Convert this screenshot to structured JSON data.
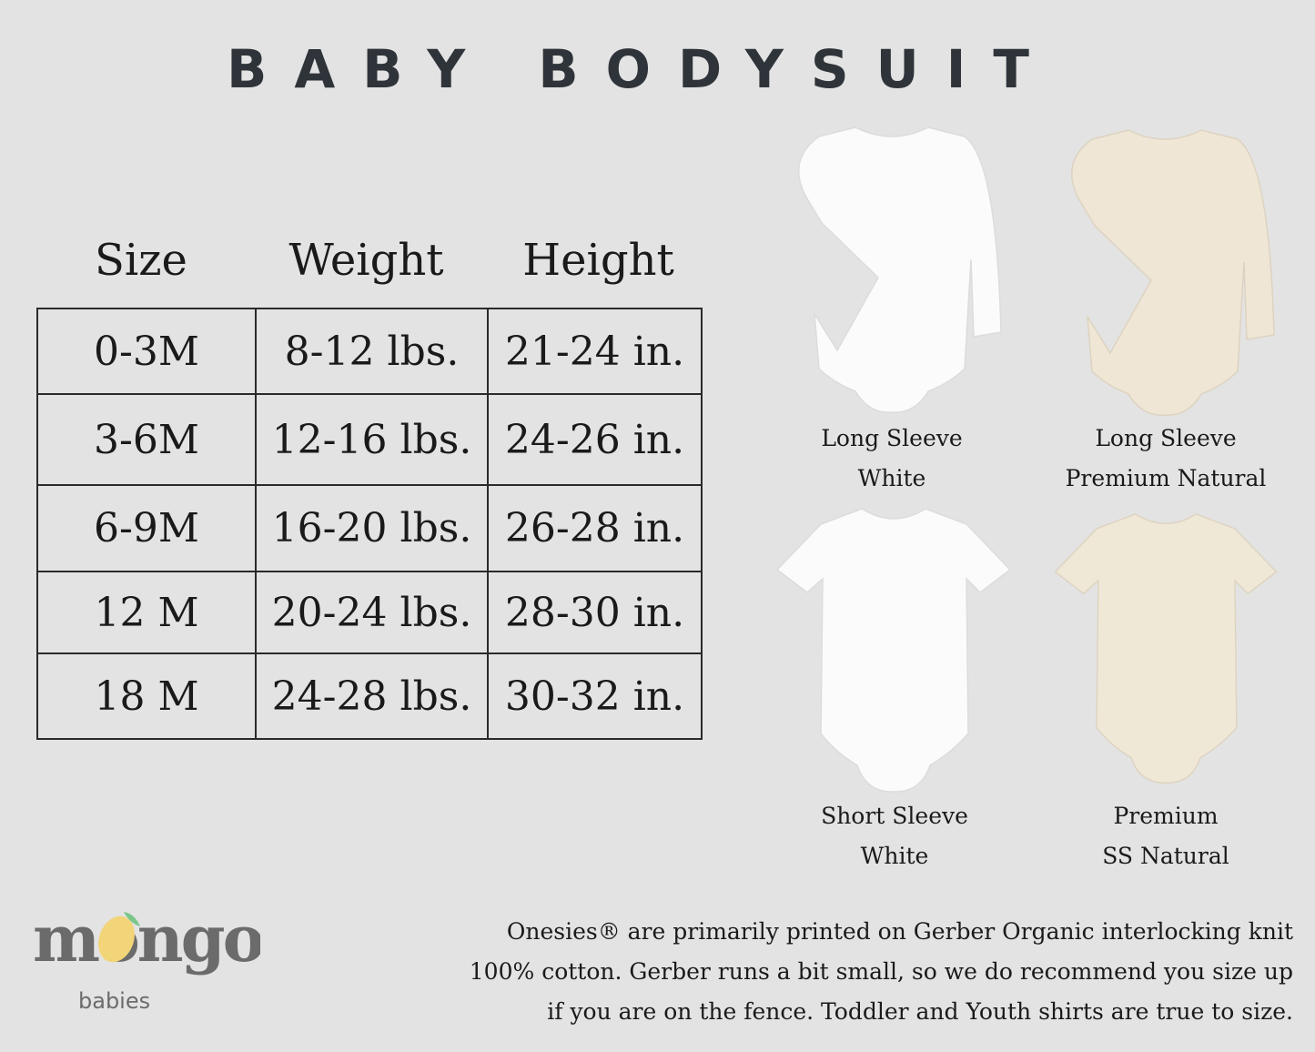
{
  "title": "BABY BODYSUIT",
  "table": {
    "headers": [
      "Size",
      "Weight",
      "Height"
    ],
    "rows": [
      [
        "0-3M",
        "8-12 lbs.",
        "21-24 in."
      ],
      [
        "3-6M",
        "12-16 lbs.",
        "24-26 in."
      ],
      [
        "6-9M",
        "16-20 lbs.",
        "26-28 in."
      ],
      [
        "12 M",
        "20-24 lbs.",
        "28-30 in."
      ],
      [
        "18 M",
        "24-28 lbs.",
        "30-32 in."
      ]
    ]
  },
  "products": [
    {
      "line1": "Long Sleeve",
      "line2": "White",
      "color": "#fbfbfb",
      "sleeve": "long"
    },
    {
      "line1": "Long Sleeve",
      "line2": "Premium Natural",
      "color": "#efe6d6",
      "sleeve": "long"
    },
    {
      "line1": "Short Sleeve",
      "line2": "White",
      "color": "#fbfbfb",
      "sleeve": "short"
    },
    {
      "line1": "Premium",
      "line2": "SS Natural",
      "color": "#efe8d6",
      "sleeve": "short"
    }
  ],
  "footer": {
    "line1": "Onesies® are primarily printed on Gerber Organic interlocking knit",
    "line2": "100% cotton. Gerber runs a bit small, so we do recommend you size up",
    "line3": "if you are on the fence. Toddler and Youth shirts are true to size."
  },
  "logo": {
    "word": "mongo",
    "sub": "babies",
    "text_color": "#6b6b6b",
    "mango_color": "#f2d479",
    "leaf_color": "#7cc68a"
  }
}
